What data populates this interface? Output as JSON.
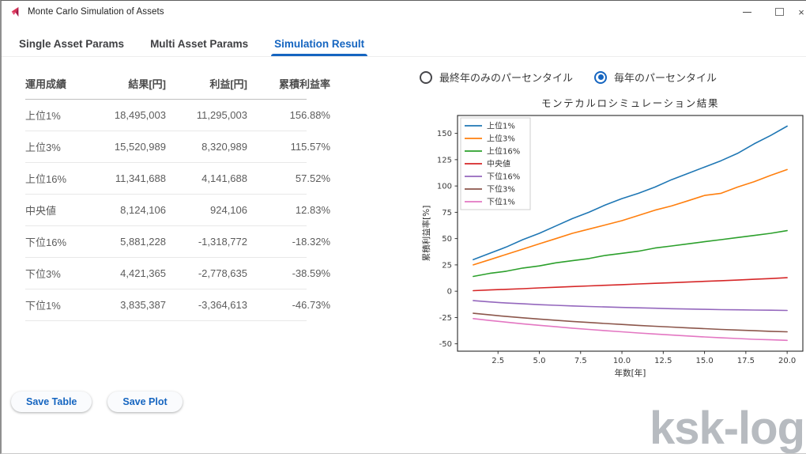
{
  "window": {
    "title": "Monte Carlo Simulation of Assets",
    "controls": {
      "minimize": "–",
      "maximize": "□",
      "close": "×"
    }
  },
  "tabs": [
    {
      "label": "Single Asset Params",
      "active": false
    },
    {
      "label": "Multi Asset Params",
      "active": false
    },
    {
      "label": "Simulation Result",
      "active": true
    }
  ],
  "table": {
    "headers": [
      "運用成績",
      "結果[円]",
      "利益[円]",
      "累積利益率"
    ],
    "rows": [
      {
        "label": "上位1%",
        "result": "18,495,003",
        "profit": "11,295,003",
        "rate": "156.88%"
      },
      {
        "label": "上位3%",
        "result": "15,520,989",
        "profit": "8,320,989",
        "rate": "115.57%"
      },
      {
        "label": "上位16%",
        "result": "11,341,688",
        "profit": "4,141,688",
        "rate": "57.52%"
      },
      {
        "label": "中央値",
        "result": "8,124,106",
        "profit": "924,106",
        "rate": "12.83%"
      },
      {
        "label": "下位16%",
        "result": "5,881,228",
        "profit": "-1,318,772",
        "rate": "-18.32%"
      },
      {
        "label": "下位3%",
        "result": "4,421,365",
        "profit": "-2,778,635",
        "rate": "-38.59%"
      },
      {
        "label": "下位1%",
        "result": "3,835,387",
        "profit": "-3,364,613",
        "rate": "-46.73%"
      }
    ]
  },
  "radios": [
    {
      "label": "最終年のみのパーセンタイル",
      "selected": false
    },
    {
      "label": "毎年のパーセンタイル",
      "selected": true
    }
  ],
  "buttons": [
    {
      "label": "Save Table"
    },
    {
      "label": "Save Plot"
    }
  ],
  "watermark": "ksk-log",
  "colors": {
    "accent": "#1565c0",
    "app_icon": "#d93355",
    "app_icon_dark": "#a31545",
    "watermark": "#b7bbc0"
  },
  "chart_data": {
    "type": "line",
    "title": "モンテカルロシミュレーション結果",
    "xlabel": "年数[年]",
    "ylabel": "累積利益率[%]",
    "x": [
      1,
      2,
      3,
      4,
      5,
      6,
      7,
      8,
      9,
      10,
      11,
      12,
      13,
      14,
      15,
      16,
      17,
      18,
      19,
      20
    ],
    "series": [
      {
        "name": "上位1%",
        "color": "#1f77b4",
        "values": [
          30,
          36,
          42,
          49,
          55,
          62,
          69,
          75,
          82,
          88,
          93,
          99,
          106,
          112,
          118,
          124,
          131,
          140,
          148,
          156.88
        ]
      },
      {
        "name": "上位3%",
        "color": "#ff7f0e",
        "values": [
          25,
          30,
          35,
          40,
          45,
          50,
          55,
          59,
          63,
          67,
          72,
          77,
          81,
          86,
          91,
          93,
          99,
          104,
          110,
          115.57
        ]
      },
      {
        "name": "上位16%",
        "color": "#2ca02c",
        "values": [
          14,
          17,
          19,
          22,
          24,
          27,
          29,
          31,
          34,
          36,
          38,
          41,
          43,
          45,
          47,
          49,
          51,
          53,
          55,
          57.52
        ]
      },
      {
        "name": "中央値",
        "color": "#d62728",
        "values": [
          0.5,
          1.2,
          1.8,
          2.4,
          3.1,
          3.7,
          4.4,
          5,
          5.6,
          6.2,
          6.9,
          7.5,
          8.1,
          8.7,
          9.4,
          10,
          10.6,
          11.3,
          12,
          12.83
        ]
      },
      {
        "name": "下位16%",
        "color": "#9467bd",
        "values": [
          -9,
          -10.2,
          -11.2,
          -12,
          -12.8,
          -13.4,
          -14,
          -14.5,
          -15,
          -15.4,
          -15.8,
          -16.2,
          -16.6,
          -16.9,
          -17.2,
          -17.5,
          -17.7,
          -17.9,
          -18.1,
          -18.32
        ]
      },
      {
        "name": "下位3%",
        "color": "#8c564b",
        "values": [
          -21,
          -22.5,
          -24,
          -25.3,
          -26.5,
          -27.6,
          -28.7,
          -29.7,
          -30.7,
          -31.6,
          -32.5,
          -33.3,
          -34.1,
          -34.9,
          -35.6,
          -36.3,
          -36.9,
          -37.5,
          -38.1,
          -38.59
        ]
      },
      {
        "name": "下位1%",
        "color": "#e377c2",
        "values": [
          -26,
          -27.8,
          -29.4,
          -31,
          -32.4,
          -33.8,
          -35.1,
          -36.3,
          -37.5,
          -38.6,
          -39.7,
          -40.7,
          -41.7,
          -42.6,
          -43.5,
          -44.3,
          -45,
          -45.7,
          -46.2,
          -46.73
        ]
      }
    ],
    "xlim": [
      0.05,
      20.95
    ],
    "ylim": [
      -57,
      167
    ],
    "xticks": [
      2.5,
      5,
      7.5,
      10,
      12.5,
      15,
      17.5,
      20
    ],
    "xtick_labels": [
      "2.5",
      "5.0",
      "7.5",
      "10.0",
      "12.5",
      "15.0",
      "17.5",
      "20.0"
    ],
    "yticks": [
      -50,
      -25,
      0,
      25,
      50,
      75,
      100,
      125,
      150
    ],
    "ytick_labels": [
      "-50",
      "-25",
      "0",
      "25",
      "50",
      "75",
      "100",
      "125",
      "150"
    ],
    "grid": false,
    "legend_position": "upper left"
  }
}
